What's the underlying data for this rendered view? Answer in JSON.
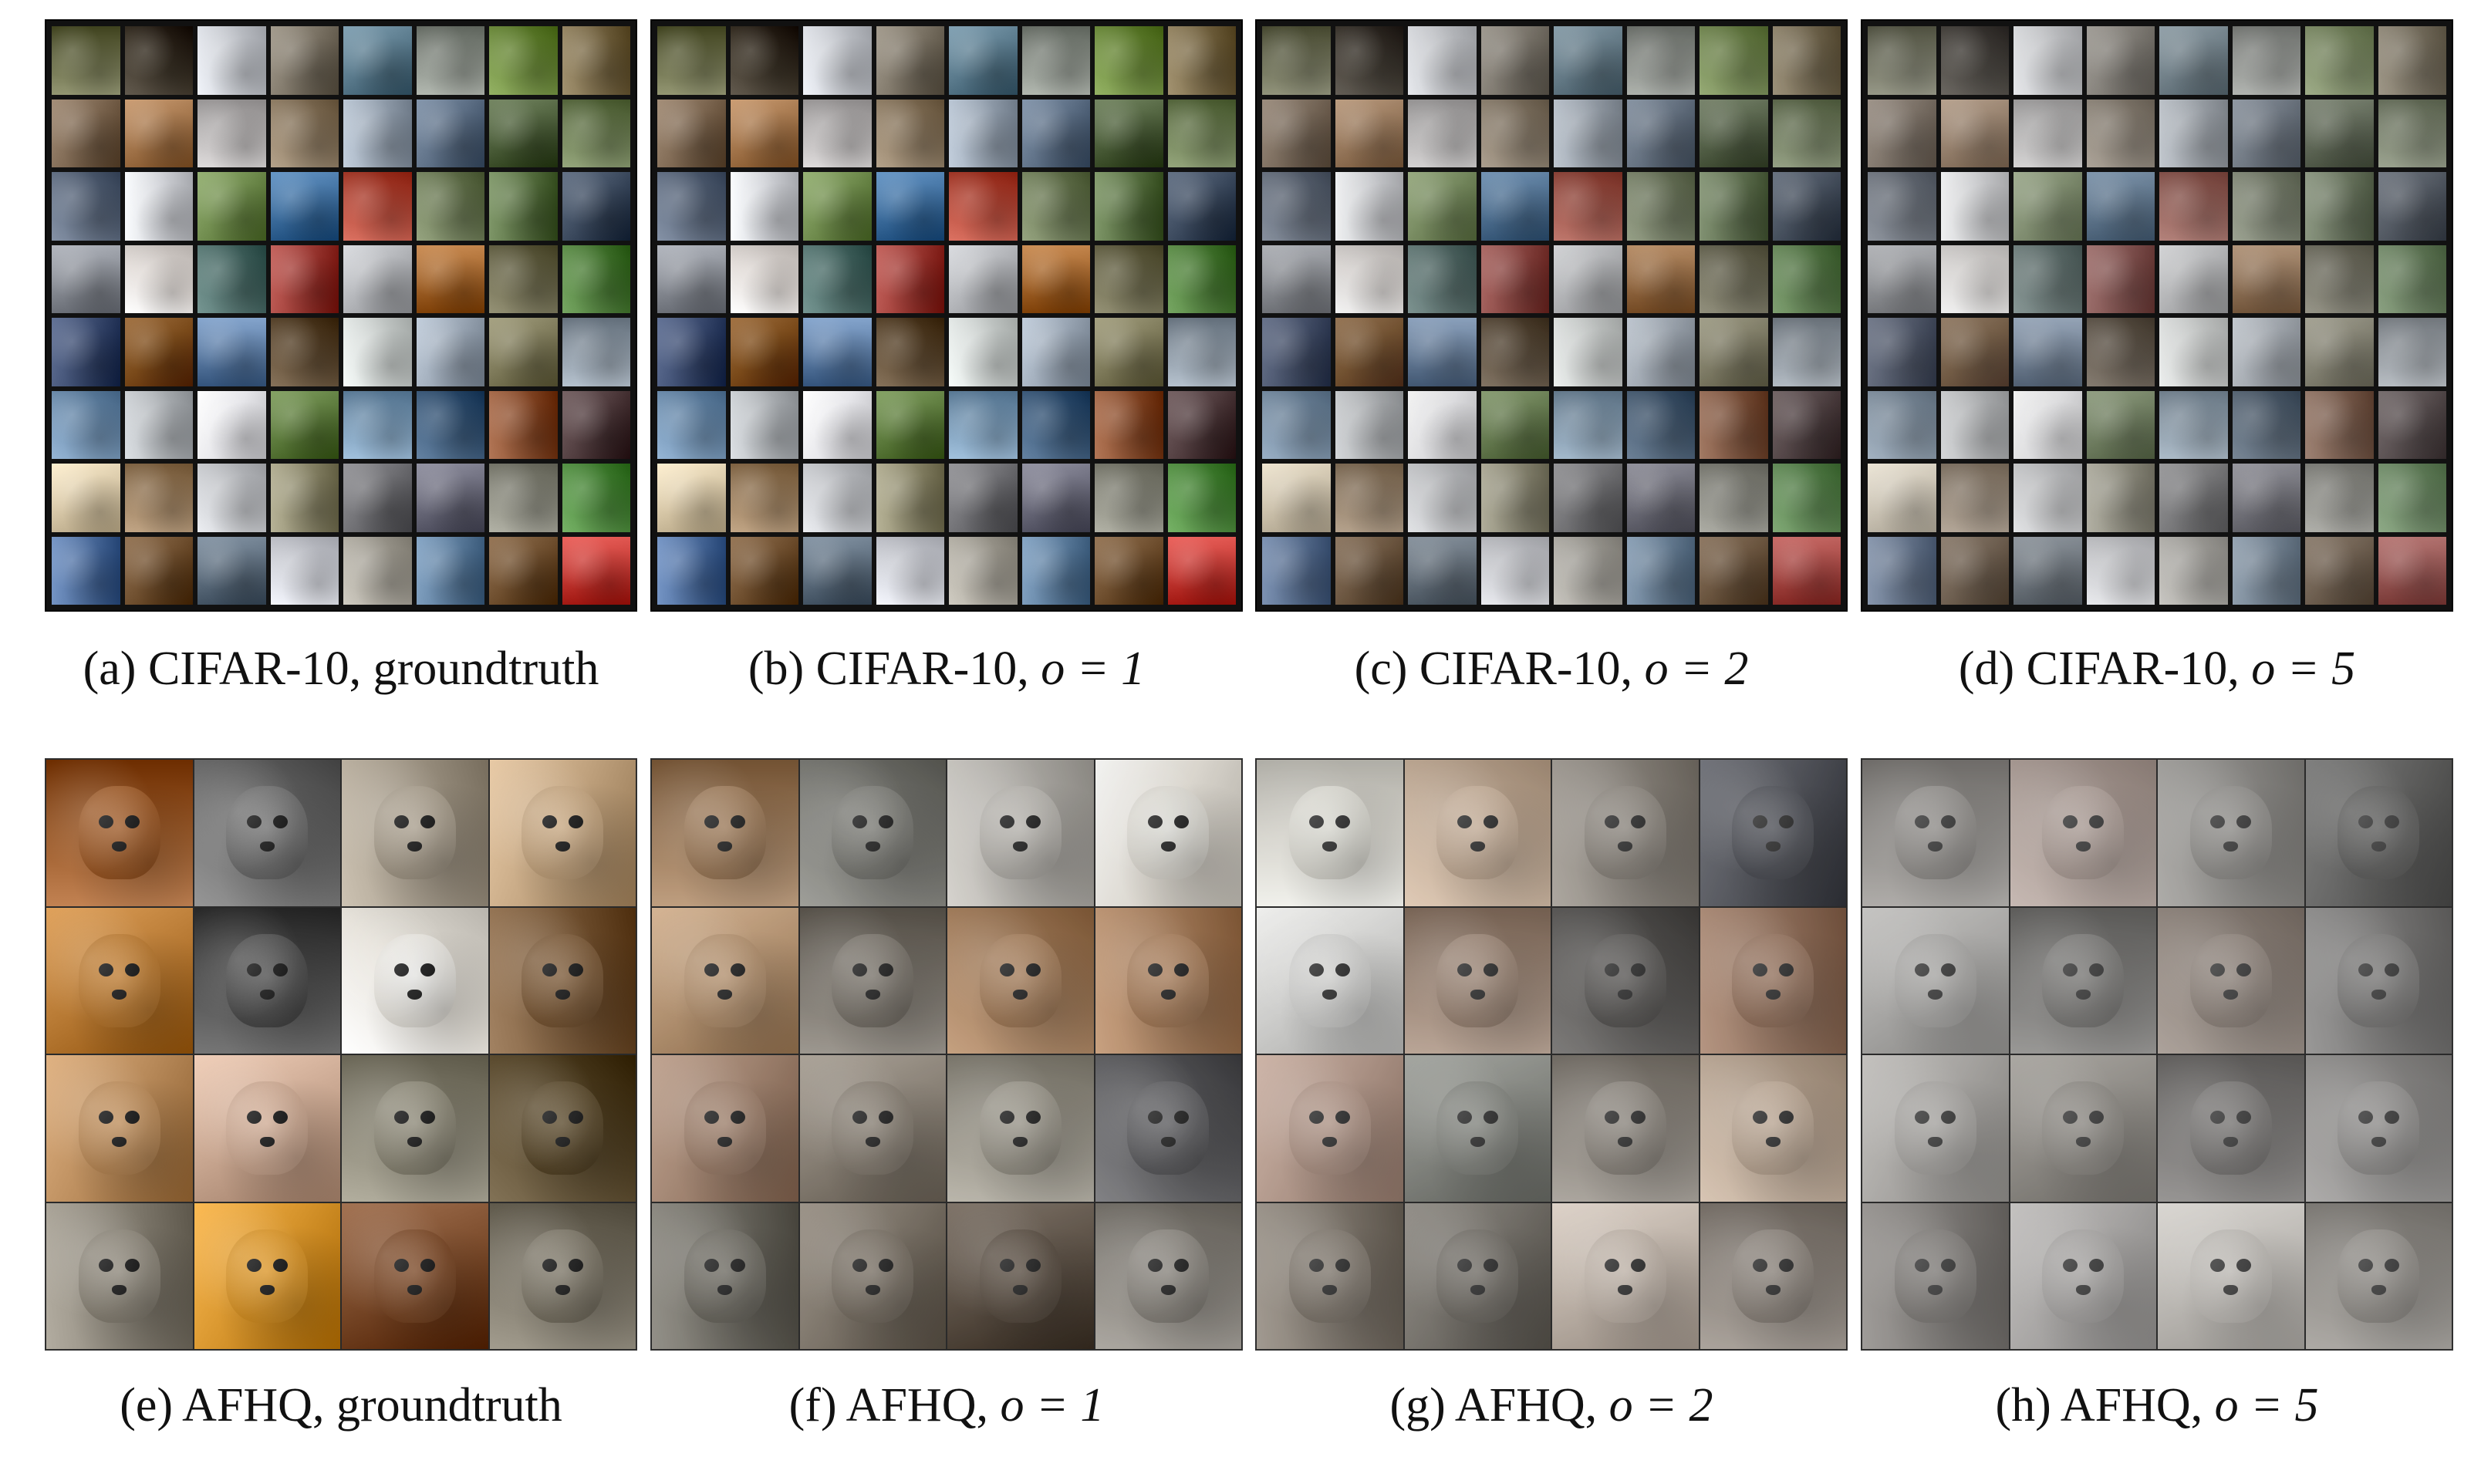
{
  "figure": {
    "top_row": {
      "panels": [
        {
          "id": "a",
          "prefix": "(a) CIFAR-10,",
          "label_plain": " groundtruth",
          "math": ""
        },
        {
          "id": "b",
          "prefix": "(b) CIFAR-10,",
          "label_plain": "",
          "math": "o = 1"
        },
        {
          "id": "c",
          "prefix": "(c) CIFAR-10,",
          "label_plain": "",
          "math": "o = 2"
        },
        {
          "id": "d",
          "prefix": "(d) CIFAR-10,",
          "label_plain": "",
          "math": "o = 5"
        }
      ]
    },
    "bottom_row": {
      "panels": [
        {
          "id": "e",
          "prefix": "(e) AFHQ,",
          "label_plain": " groundtruth",
          "math": ""
        },
        {
          "id": "f",
          "prefix": "(f) AFHQ,",
          "label_plain": "",
          "math": "o = 1"
        },
        {
          "id": "g",
          "prefix": "(g) AFHQ,",
          "label_plain": "",
          "math": "o = 2"
        },
        {
          "id": "h",
          "prefix": "(h) AFHQ,",
          "label_plain": "",
          "math": "o = 5"
        }
      ]
    }
  },
  "palettes": {
    "cifar": [
      "#6b6e4a",
      "#3a3226",
      "#c9ccd2",
      "#7b7365",
      "#5a7a8c",
      "#8a9088",
      "#6c8a3c",
      "#7a6a48",
      "#7c6650",
      "#a3754b",
      "#b7b4b4",
      "#8c7a62",
      "#9aa6b4",
      "#5c6e84",
      "#4c5e3a",
      "#6d7e54",
      "#5d6a7e",
      "#d3d5da",
      "#6e8a4c",
      "#3e6e9e",
      "#b44a3a",
      "#6e7c58",
      "#5a7244",
      "#3c4a5e",
      "#8a8e96",
      "#e2dcd8",
      "#4e6e6a",
      "#9c3a34",
      "#b2b4b8",
      "#a3652c",
      "#6d6a4e",
      "#4e7e3a",
      "#3a4a6e",
      "#7a4a1a",
      "#5e7ea6",
      "#5e4a32",
      "#cfd4d2",
      "#9aa6b4",
      "#7e7a5a",
      "#8e9aa6",
      "#6e8eae",
      "#b4b8bc",
      "#e6e6ea",
      "#5c7a3c",
      "#7a9ab6",
      "#3c5a7a",
      "#8a4e2e",
      "#4e3a3c",
      "#d8c8a8",
      "#9a7e5e",
      "#c4c6ca",
      "#8e8a6e",
      "#6e6e72",
      "#6a6a7a",
      "#8a8a7e",
      "#4e8a3e",
      "#4e6e9e",
      "#6e4e2e",
      "#5e6e7e",
      "#cdcfd6",
      "#a8a49a",
      "#5e7e9e",
      "#6e4e2e",
      "#c43a34"
    ],
    "afhq_gt": [
      "#9a5a2a",
      "#6e6e6e",
      "#a49a8a",
      "#c0a27e",
      "#b87a34",
      "#4e4e4e",
      "#e6e2da",
      "#7a5a3a",
      "#b88a5a",
      "#c8a690",
      "#8a8676",
      "#5a4a2e",
      "#8a8478",
      "#d4922a",
      "#7a4a2a",
      "#7a7466"
    ],
    "afhq_o1": [
      "#a8784a",
      "#7a7a72",
      "#b8b4ac",
      "#e6e0d4",
      "#c09060",
      "#7a7266",
      "#b07a4a",
      "#b47a4a",
      "#a87e62",
      "#8a7e6e",
      "#9a9484",
      "#5a5a5e",
      "#6e6a5e",
      "#7a6e5e",
      "#5a4a3a",
      "#8a847a"
    ],
    "afhq_o2": [
      "#e0dccc",
      "#d4a67a",
      "#8a7e6e",
      "#3e4250",
      "#d4d4d0",
      "#a67a5a",
      "#4e4a46",
      "#a8643a",
      "#c08a6e",
      "#7a7e72",
      "#8a7e6e",
      "#c8a07a",
      "#7e6e5a",
      "#6a6254",
      "#c8b09a",
      "#8a7a6a"
    ],
    "afhq_o5": [
      "#8e8478",
      "#c49078",
      "#8a8478",
      "#4a4a46",
      "#a8a49c",
      "#6e6a62",
      "#9a7458",
      "#6e6a66",
      "#a8a094",
      "#8a7e6a",
      "#6e6660",
      "#8a847e",
      "#7a6e62",
      "#a8a09a",
      "#c8bcaa",
      "#8e8270"
    ]
  }
}
